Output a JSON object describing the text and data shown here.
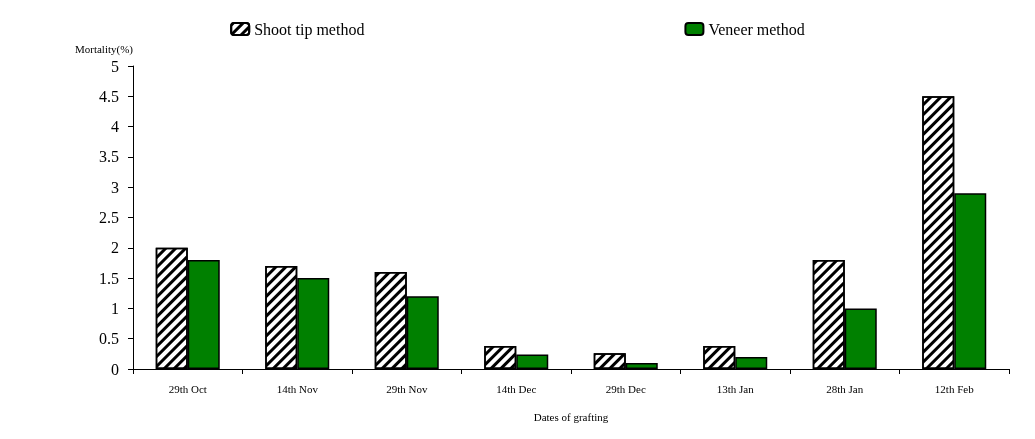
{
  "chart_data": {
    "type": "bar",
    "xlabel": "Dates of grafting",
    "ylabel": "Mortality(%)",
    "categories": [
      "29th Oct",
      "14th Nov",
      "29th Nov",
      "14th Dec",
      "29th Dec",
      "13th Jan",
      "28th Jan",
      "12th Feb"
    ],
    "series": [
      {
        "name": "Shoot tip method",
        "color": "#ffffff",
        "values": [
          2.0,
          1.7,
          1.6,
          0.38,
          0.26,
          0.38,
          1.8,
          4.5
        ]
      },
      {
        "name": "Veneer method",
        "color": "#008000",
        "values": [
          1.8,
          1.5,
          1.2,
          0.24,
          0.1,
          0.2,
          1.0,
          2.9
        ]
      }
    ],
    "ylim": [
      0,
      5
    ],
    "yticks": [
      0,
      0.5,
      1,
      1.5,
      2,
      2.5,
      3,
      3.5,
      4,
      4.5,
      5
    ],
    "grid": false,
    "legend": "top"
  }
}
